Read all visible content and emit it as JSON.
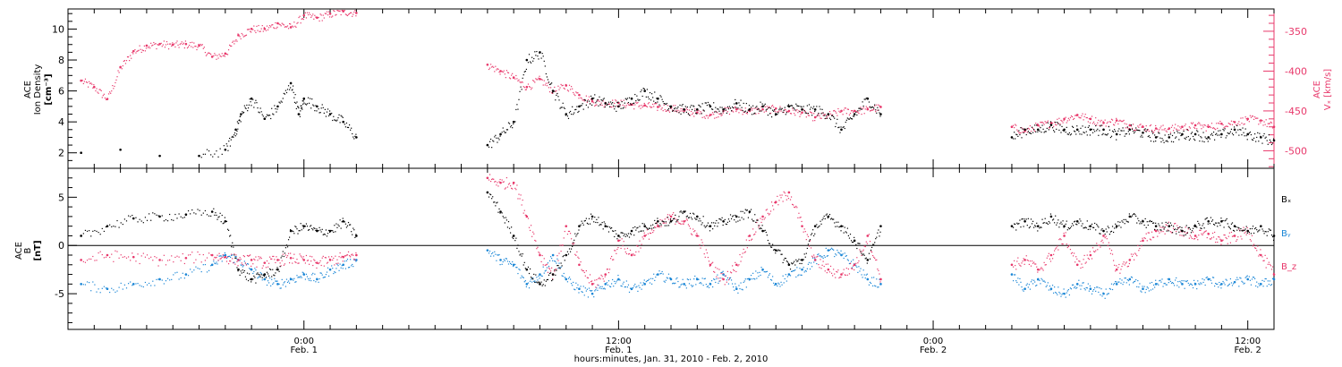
{
  "colors": {
    "black": "#000000",
    "pink": "#e8386b",
    "blue": "#1a86d6"
  },
  "chart_data": [
    {
      "type": "scatter",
      "panel": "top",
      "left_ylabel": [
        "ACE",
        "Ion Density",
        "[cm⁻³]"
      ],
      "right_ylabel": [
        "ACE",
        "Vₓ [km/s]"
      ],
      "left_yticks": [
        "2",
        "4",
        "6",
        "8",
        "10"
      ],
      "left_yticks_values": [
        2,
        4,
        6,
        8,
        10
      ],
      "left_ylim": [
        1.0,
        11.3
      ],
      "right_yticks": [
        "-350",
        "-400",
        "-450",
        "-500"
      ],
      "right_yticks_values": [
        -350,
        -400,
        -450,
        -500
      ],
      "right_ylim": [
        -522,
        -322
      ],
      "series": [
        {
          "color": "black",
          "x_hours": [
            -8.5,
            -7,
            -5.5,
            -4,
            -3,
            -2.6,
            -2.4,
            -2,
            -1.5,
            -1,
            -0.5,
            -0.2,
            0,
            0.5,
            1,
            1.5,
            2,
            7,
            7.5,
            8,
            8.5,
            9,
            9.5,
            10,
            10.5,
            11,
            11.5,
            12,
            12.5,
            13,
            13.5,
            14,
            14.5,
            15,
            15.5,
            16,
            16.5,
            17,
            17.5,
            18,
            18.5,
            19,
            19.5,
            20,
            20.5,
            21,
            21.5,
            22,
            27,
            27.5,
            28,
            28.5,
            29,
            29.5,
            30,
            30.5,
            31,
            31.5,
            32,
            32.5,
            33,
            33.5,
            34,
            34.5,
            35,
            35.5,
            36,
            36.5,
            37
          ],
          "y": [
            2.0,
            2.2,
            1.8,
            1.8,
            2.2,
            3.5,
            4.5,
            5.5,
            4.2,
            5.0,
            6.5,
            4.5,
            5.5,
            5.0,
            4.5,
            4.0,
            3.0,
            2.5,
            3.2,
            4.0,
            8.0,
            8.5,
            6.0,
            4.5,
            5.0,
            5.5,
            5.2,
            5.0,
            5.5,
            6.0,
            5.5,
            5.0,
            4.8,
            4.8,
            5.0,
            4.8,
            5.2,
            4.8,
            5.0,
            4.5,
            5.0,
            4.8,
            4.8,
            4.5,
            3.5,
            4.5,
            5.5,
            4.5,
            3.0,
            3.5,
            3.5,
            3.8,
            3.5,
            3.5,
            3.5,
            3.5,
            3.2,
            3.5,
            3.3,
            3.0,
            3.0,
            3.2,
            3.2,
            3.0,
            3.2,
            3.5,
            3.2,
            3.0,
            2.8
          ]
        },
        {
          "color": "pink",
          "axis": "right",
          "x_hours": [
            -8.5,
            -8,
            -7.5,
            -7,
            -6.5,
            -6,
            -5.5,
            -5,
            -4.5,
            -4,
            -3.5,
            -3,
            -2.5,
            -2,
            -1.5,
            -1,
            -0.5,
            0,
            0.5,
            1,
            1.5,
            2,
            7,
            7.5,
            8,
            8.5,
            9,
            9.5,
            10,
            10.5,
            11,
            11.5,
            12,
            12.5,
            13,
            13.5,
            14,
            14.5,
            15,
            15.5,
            16,
            16.5,
            17,
            17.5,
            18,
            18.5,
            19,
            19.5,
            20,
            20.5,
            21,
            21.5,
            22,
            27,
            27.5,
            28,
            28.5,
            29,
            29.5,
            30,
            30.5,
            31,
            31.5,
            32,
            32.5,
            33,
            33.5,
            34,
            34.5,
            35,
            35.5,
            36,
            36.5,
            37
          ],
          "y": [
            -412,
            -420,
            -435,
            -395,
            -375,
            -368,
            -366,
            -367,
            -366,
            -368,
            -382,
            -378,
            -355,
            -347,
            -347,
            -340,
            -345,
            -330,
            -333,
            -328,
            -325,
            -327,
            -392,
            -400,
            -408,
            -420,
            -410,
            -425,
            -418,
            -430,
            -438,
            -440,
            -440,
            -442,
            -443,
            -445,
            -446,
            -450,
            -452,
            -455,
            -450,
            -448,
            -450,
            -448,
            -447,
            -450,
            -452,
            -458,
            -455,
            -450,
            -450,
            -448,
            -445,
            -470,
            -475,
            -468,
            -465,
            -460,
            -455,
            -460,
            -465,
            -462,
            -468,
            -470,
            -472,
            -472,
            -470,
            -468,
            -470,
            -466,
            -464,
            -460,
            -462,
            -470
          ]
        }
      ]
    },
    {
      "type": "scatter",
      "panel": "bottom",
      "left_ylabel": [
        "ACE",
        "B",
        "[nT]"
      ],
      "left_yticks": [
        "5",
        "0",
        "-5"
      ],
      "left_yticks_values": [
        5,
        0,
        -5
      ],
      "ylim": [
        -8.7,
        8.0
      ],
      "zero_line": true,
      "legend": {
        "placement": "right"
      },
      "series": [
        {
          "name": "Bₓ",
          "color": "black",
          "x_hours": [
            -8.5,
            -7.5,
            -6.5,
            -5.5,
            -4.5,
            -3.5,
            -3,
            -2.5,
            -2,
            -1.5,
            -1,
            -0.5,
            0,
            0.5,
            1,
            1.5,
            2,
            7,
            7.5,
            8,
            8.5,
            9,
            9.5,
            10,
            10.5,
            11,
            11.5,
            12,
            12.5,
            13,
            13.5,
            14,
            14.5,
            15,
            15.5,
            16,
            16.5,
            17,
            17.5,
            18,
            18.5,
            19,
            19.5,
            20,
            20.5,
            21,
            21.5,
            22,
            27,
            27.5,
            28,
            28.5,
            29,
            29.5,
            30,
            30.5,
            31,
            31.5,
            32,
            32.5,
            33,
            33.5,
            34,
            34.5,
            35,
            35.5,
            36,
            36.5,
            37
          ],
          "y": [
            1.0,
            2.0,
            2.8,
            3.0,
            3.2,
            3.5,
            2.5,
            -2.5,
            -3.5,
            -3.0,
            -2.5,
            1.5,
            2.0,
            1.5,
            1.5,
            2.5,
            1.0,
            5.5,
            3.5,
            1.0,
            -2.5,
            -4.0,
            -3.0,
            -1.0,
            2.0,
            3.0,
            2.0,
            1.0,
            1.5,
            2.0,
            2.5,
            2.5,
            3.5,
            3.0,
            2.0,
            2.5,
            3.0,
            3.5,
            1.5,
            -0.5,
            -2.0,
            -1.5,
            2.0,
            3.0,
            2.0,
            0.5,
            -1.5,
            2.0,
            2.0,
            2.5,
            2.0,
            3.0,
            2.0,
            2.5,
            2.0,
            1.5,
            2.0,
            3.0,
            2.5,
            2.0,
            2.0,
            1.5,
            2.0,
            2.5,
            2.5,
            2.0,
            1.5,
            2.0,
            1.0
          ]
        },
        {
          "name": "Bᵧ",
          "color": "blue",
          "x_hours": [
            -8.5,
            -7.5,
            -6.5,
            -5.5,
            -4.5,
            -3.5,
            -3,
            -2.5,
            -2,
            -1.5,
            -1,
            -0.5,
            0,
            0.5,
            1,
            1.5,
            2,
            7,
            7.5,
            8,
            8.5,
            9,
            9.5,
            10,
            10.5,
            11,
            11.5,
            12,
            12.5,
            13,
            13.5,
            14,
            14.5,
            15,
            15.5,
            16,
            16.5,
            17,
            17.5,
            18,
            18.5,
            19,
            19.5,
            20,
            20.5,
            21,
            21.5,
            22,
            27,
            27.5,
            28,
            28.5,
            29,
            29.5,
            30,
            30.5,
            31,
            31.5,
            32,
            32.5,
            33,
            33.5,
            34,
            34.5,
            35,
            35.5,
            36,
            36.5,
            37
          ],
          "y": [
            -4.0,
            -4.5,
            -4.0,
            -3.5,
            -3.0,
            -2.0,
            -1.0,
            -1.5,
            -2.5,
            -3.5,
            -4.0,
            -3.5,
            -3.0,
            -3.5,
            -2.5,
            -2.0,
            -1.5,
            -0.5,
            -1.5,
            -2.0,
            -4.0,
            -3.0,
            -1.0,
            -3.5,
            -4.5,
            -5.0,
            -4.0,
            -3.5,
            -4.5,
            -4.0,
            -3.0,
            -3.5,
            -4.0,
            -3.5,
            -4.0,
            -3.0,
            -4.5,
            -3.5,
            -2.5,
            -4.0,
            -3.0,
            -2.5,
            -1.5,
            -0.5,
            -1.0,
            -2.0,
            -3.5,
            -4.0,
            -3.0,
            -4.5,
            -3.5,
            -4.5,
            -5.0,
            -4.0,
            -4.5,
            -5.0,
            -4.0,
            -3.5,
            -4.5,
            -4.0,
            -3.5,
            -4.0,
            -4.0,
            -3.5,
            -4.0,
            -3.8,
            -3.5,
            -4.0,
            -3.5
          ]
        },
        {
          "name": "B_z",
          "color": "pink",
          "x_hours": [
            -8.5,
            -7.5,
            -6.5,
            -5.5,
            -4.5,
            -3.5,
            -3,
            -2.5,
            -2,
            -1.5,
            -1,
            -0.5,
            0,
            0.5,
            1,
            1.5,
            2,
            7,
            7.5,
            8,
            8.5,
            9,
            9.5,
            10,
            10.5,
            11,
            11.5,
            12,
            12.5,
            13,
            13.5,
            14,
            14.5,
            15,
            15.5,
            16,
            16.5,
            17,
            17.5,
            18,
            18.5,
            19,
            19.5,
            20,
            20.5,
            21,
            21.5,
            22,
            27,
            27.5,
            28,
            28.5,
            29,
            29.5,
            30,
            30.5,
            31,
            31.5,
            32,
            32.5,
            33,
            33.5,
            34,
            34.5,
            35,
            35.5,
            36,
            36.5,
            37
          ],
          "y": [
            -1.5,
            -1.0,
            -1.2,
            -1.5,
            -1.3,
            -1.0,
            -1.2,
            -1.5,
            -1.5,
            -1.8,
            -1.5,
            -1.3,
            -1.5,
            -1.8,
            -1.5,
            -1.2,
            -1.0,
            7.0,
            6.5,
            6.5,
            3.0,
            -1.0,
            -3.0,
            2.0,
            -2.0,
            -4.0,
            -3.0,
            0.5,
            -1.0,
            1.0,
            2.0,
            3.0,
            2.5,
            1.0,
            -2.0,
            -3.5,
            -2.0,
            1.0,
            3.0,
            4.5,
            5.5,
            2.0,
            -1.5,
            -2.5,
            -3.0,
            -2.0,
            1.0,
            -3.5,
            -2.0,
            -1.5,
            -2.5,
            -1.0,
            1.0,
            -2.0,
            -1.0,
            1.0,
            -2.5,
            -1.5,
            0.5,
            1.5,
            2.0,
            1.5,
            1.0,
            1.2,
            0.5,
            1.0,
            1.5,
            -1.0,
            -3.0
          ]
        }
      ]
    }
  ],
  "x_axis": {
    "label": "hours:minutes, Jan. 31, 2010 - Feb. 2, 2010",
    "xlim_hours": [
      -9,
      37
    ],
    "major_ticks": [
      {
        "hour": 0,
        "time": "0:00",
        "date": "Feb. 1"
      },
      {
        "hour": 12,
        "time": "12:00",
        "date": "Feb. 1"
      },
      {
        "hour": 24,
        "time": "0:00",
        "date": "Feb. 2"
      },
      {
        "hour": 36,
        "time": "12:00",
        "date": "Feb. 2"
      }
    ],
    "minor_tick_step_hours": 1
  }
}
